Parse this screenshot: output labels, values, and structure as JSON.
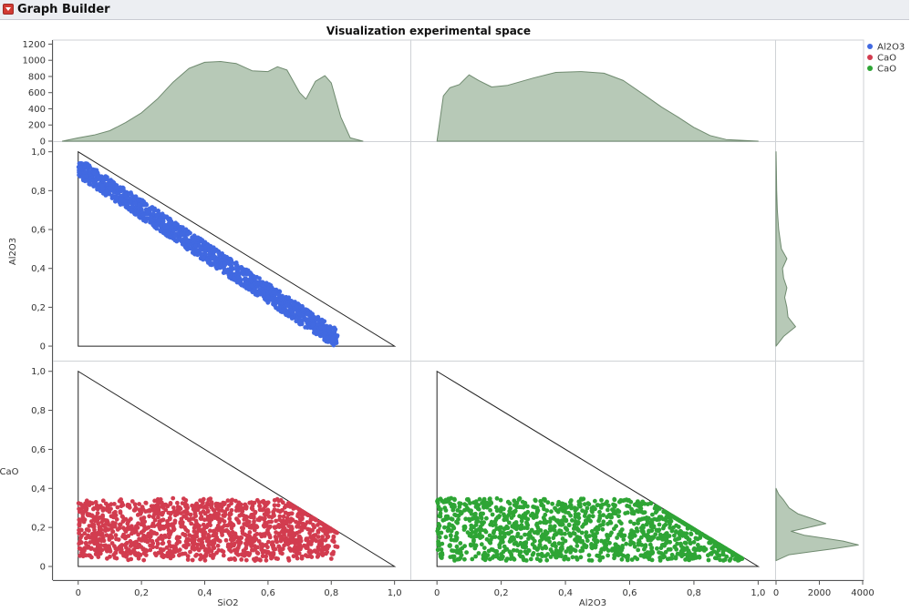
{
  "header": {
    "title": "Graph Builder"
  },
  "chart_data": {
    "type": "scatter",
    "title": "Visualization experimental space",
    "panels": [
      {
        "id": "sio2-al2o3",
        "x": "SiO2",
        "y": "Al2O3",
        "color": "#4169e1"
      },
      {
        "id": "sio2-cao",
        "x": "SiO2",
        "y": "CaO",
        "color": "#d23c4f"
      },
      {
        "id": "al2o3-cao",
        "x": "Al2O3",
        "y": "CaO",
        "color": "#2ea535"
      }
    ],
    "axes": {
      "SiO2": {
        "label": "SiO2",
        "range": [
          -0.08,
          1.05
        ],
        "ticks": [
          "0",
          "0,2",
          "0,4",
          "0,6",
          "0,8",
          "1,0"
        ]
      },
      "Al2O3_x": {
        "label": "Al2O3",
        "range": [
          -0.08,
          1.05
        ],
        "ticks": [
          "0",
          "0,2",
          "0,4",
          "0,6",
          "0,8",
          "1,0"
        ]
      },
      "Al2O3_y": {
        "label": "Al2O3",
        "range": [
          -0.07,
          1.05
        ],
        "ticks": [
          "0",
          "0,2",
          "0,4",
          "0,6",
          "0,8",
          "1,0"
        ]
      },
      "CaO_y": {
        "label": "CaO",
        "range": [
          -0.07,
          1.05
        ],
        "ticks": [
          "0",
          "0,2",
          "0,4",
          "0,6",
          "0,8",
          "1,0"
        ]
      },
      "density_y": {
        "range": [
          0,
          1250
        ],
        "ticks": [
          "0",
          "200",
          "400",
          "600",
          "800",
          "1000",
          "1200"
        ]
      },
      "density_x": {
        "range": [
          0,
          4000
        ],
        "ticks": [
          "0",
          "2000",
          "4000"
        ]
      }
    },
    "legend": {
      "placement": "top-right",
      "items": [
        {
          "label": "Al2O3",
          "color": "#4169e1"
        },
        {
          "label": "CaO",
          "color": "#d23c4f"
        },
        {
          "label": "CaO",
          "color": "#2ea535"
        }
      ]
    },
    "marginals": {
      "fill": "#b7c9b7",
      "stroke": "#6f8a6f",
      "sio2_density": [
        [
          -0.05,
          0
        ],
        [
          0,
          40
        ],
        [
          0.05,
          75
        ],
        [
          0.1,
          130
        ],
        [
          0.15,
          230
        ],
        [
          0.2,
          350
        ],
        [
          0.25,
          520
        ],
        [
          0.3,
          730
        ],
        [
          0.35,
          900
        ],
        [
          0.4,
          975
        ],
        [
          0.45,
          985
        ],
        [
          0.5,
          960
        ],
        [
          0.55,
          870
        ],
        [
          0.6,
          860
        ],
        [
          0.63,
          920
        ],
        [
          0.66,
          880
        ],
        [
          0.7,
          600
        ],
        [
          0.72,
          520
        ],
        [
          0.75,
          740
        ],
        [
          0.78,
          810
        ],
        [
          0.8,
          720
        ],
        [
          0.83,
          300
        ],
        [
          0.86,
          40
        ],
        [
          0.9,
          0
        ]
      ],
      "al2o3_density": [
        [
          0,
          0
        ],
        [
          0.02,
          560
        ],
        [
          0.04,
          660
        ],
        [
          0.07,
          700
        ],
        [
          0.1,
          820
        ],
        [
          0.13,
          750
        ],
        [
          0.17,
          670
        ],
        [
          0.22,
          690
        ],
        [
          0.3,
          780
        ],
        [
          0.37,
          850
        ],
        [
          0.45,
          860
        ],
        [
          0.52,
          840
        ],
        [
          0.58,
          750
        ],
        [
          0.65,
          560
        ],
        [
          0.7,
          420
        ],
        [
          0.75,
          300
        ],
        [
          0.8,
          170
        ],
        [
          0.85,
          70
        ],
        [
          0.9,
          20
        ],
        [
          1.0,
          0
        ]
      ],
      "al2o3_density_side": [
        [
          0,
          0
        ],
        [
          0.05,
          350
        ],
        [
          0.1,
          900
        ],
        [
          0.15,
          550
        ],
        [
          0.2,
          500
        ],
        [
          0.25,
          400
        ],
        [
          0.3,
          500
        ],
        [
          0.35,
          350
        ],
        [
          0.4,
          300
        ],
        [
          0.45,
          500
        ],
        [
          0.5,
          250
        ],
        [
          0.6,
          120
        ],
        [
          0.7,
          60
        ],
        [
          0.8,
          30
        ],
        [
          0.9,
          15
        ],
        [
          1.0,
          0
        ]
      ],
      "cao_density_side": [
        [
          0.03,
          0
        ],
        [
          0.06,
          600
        ],
        [
          0.09,
          2600
        ],
        [
          0.11,
          3800
        ],
        [
          0.13,
          3100
        ],
        [
          0.16,
          1300
        ],
        [
          0.18,
          700
        ],
        [
          0.2,
          1500
        ],
        [
          0.22,
          2300
        ],
        [
          0.24,
          1800
        ],
        [
          0.27,
          1000
        ],
        [
          0.3,
          600
        ],
        [
          0.34,
          350
        ],
        [
          0.37,
          120
        ],
        [
          0.4,
          0
        ]
      ]
    }
  }
}
